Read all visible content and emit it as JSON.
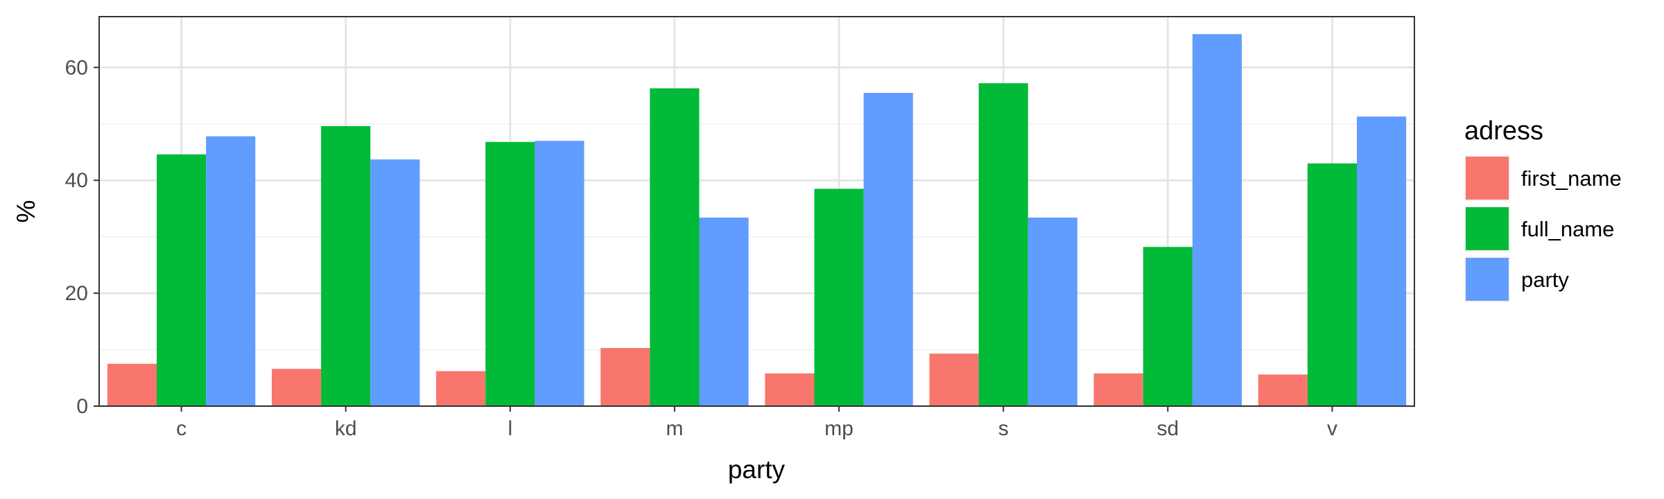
{
  "chart_data": {
    "type": "bar",
    "categories": [
      "c",
      "kd",
      "l",
      "m",
      "mp",
      "s",
      "sd",
      "v"
    ],
    "series": [
      {
        "name": "first_name",
        "color": "#F8766D",
        "values": [
          7.5,
          6.6,
          6.2,
          10.3,
          5.8,
          9.3,
          5.8,
          5.6
        ]
      },
      {
        "name": "full_name",
        "color": "#00BA38",
        "values": [
          44.6,
          49.6,
          46.8,
          56.3,
          38.5,
          57.2,
          28.2,
          43.0
        ]
      },
      {
        "name": "party",
        "color": "#619CFF",
        "values": [
          47.8,
          43.7,
          47.0,
          33.4,
          55.5,
          33.4,
          65.9,
          51.3
        ]
      }
    ],
    "xlabel": "party",
    "ylabel": "%",
    "ylim": [
      0,
      69
    ],
    "yticks": [
      0,
      20,
      40,
      60
    ],
    "grid": true,
    "legend": {
      "title": "adress",
      "position": "right"
    }
  }
}
